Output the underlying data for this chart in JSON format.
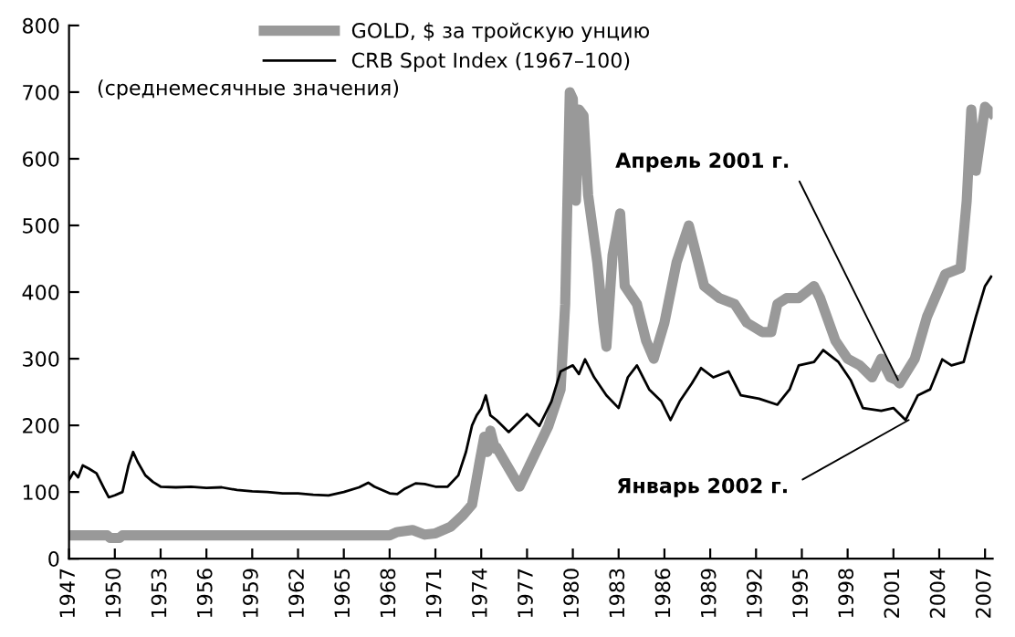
{
  "chart_data": {
    "type": "line",
    "annotations": [
      "(среднемесячные значения)",
      {
        "text": "Апрель 2001 г.",
        "x": 2001.3,
        "y": 268
      },
      {
        "text": "Январь 2002 г.",
        "x": 2002.0,
        "y": 208
      }
    ],
    "series": [
      {
        "name": "GOLD, $ за тройскую унцию",
        "color": "#999999",
        "x": [
          1947.0,
          1949.5,
          1949.7,
          1950.3,
          1950.5,
          1968.0,
          1968.5,
          1969.5,
          1970.3,
          1971.0,
          1972.0,
          1972.8,
          1973.4,
          1973.9,
          1974.2,
          1974.4,
          1974.6,
          1974.9,
          1975.0,
          1976.5,
          1978.4,
          1979.2,
          1979.5,
          1979.8,
          1980.0,
          1980.2,
          1980.4,
          1980.7,
          1981.0,
          1981.6,
          1982.0,
          1982.2,
          1982.6,
          1983.1,
          1983.4,
          1984.2,
          1984.8,
          1985.3,
          1986.0,
          1986.8,
          1987.6,
          1988.0,
          1988.6,
          1989.6,
          1990.6,
          1991.4,
          1992.4,
          1993.0,
          1993.4,
          1994.0,
          1994.8,
          1995.8,
          1996.2,
          1997.2,
          1998.0,
          1998.8,
          1999.6,
          2000.2,
          2000.8,
          2001.2,
          2001.4,
          2002.4,
          2003.2,
          2004.4,
          2005.4,
          2005.8,
          2006.1,
          2006.4,
          2007.0,
          2007.4
        ],
        "values": [
          35,
          35,
          31,
          31,
          35,
          35,
          40,
          43,
          36,
          38,
          48,
          65,
          81,
          146,
          183,
          160,
          192,
          165,
          167,
          108,
          199,
          254,
          382,
          700,
          690,
          537,
          674,
          665,
          546,
          445,
          354,
          318,
          455,
          518,
          409,
          382,
          327,
          300,
          354,
          445,
          500,
          464,
          409,
          391,
          382,
          354,
          340,
          340,
          382,
          391,
          391,
          409,
          391,
          327,
          300,
          290,
          272,
          300,
          272,
          268,
          263,
          300,
          363,
          427,
          436,
          537,
          674,
          582,
          678,
          669
        ]
      },
      {
        "name": "CRB Spot Index (1967–100)",
        "color": "#000000",
        "x": [
          1947.0,
          1947.3,
          1947.6,
          1947.9,
          1948.3,
          1948.8,
          1949.3,
          1949.6,
          1950.0,
          1950.5,
          1950.9,
          1951.2,
          1951.5,
          1952.0,
          1952.5,
          1953.0,
          1954.0,
          1955.0,
          1956.0,
          1957.0,
          1958.0,
          1959.0,
          1960.0,
          1961.0,
          1962.0,
          1963.0,
          1964.0,
          1965.0,
          1966.0,
          1966.6,
          1967.0,
          1968.0,
          1968.5,
          1969.0,
          1969.7,
          1970.3,
          1971.0,
          1971.8,
          1972.5,
          1973.0,
          1973.4,
          1973.7,
          1974.0,
          1974.3,
          1974.6,
          1975.0,
          1975.8,
          1977.0,
          1977.8,
          1978.6,
          1979.2,
          1980.0,
          1980.4,
          1980.8,
          1981.4,
          1982.2,
          1983.0,
          1983.6,
          1984.2,
          1985.0,
          1985.8,
          1986.4,
          1987.0,
          1987.8,
          1988.4,
          1989.2,
          1990.2,
          1991.0,
          1992.2,
          1993.4,
          1994.2,
          1994.8,
          1995.8,
          1996.4,
          1997.4,
          1998.2,
          1999.0,
          2000.2,
          2001.0,
          2001.8,
          2002.6,
          2003.4,
          2004.2,
          2004.8,
          2005.6,
          2006.4,
          2007.0,
          2007.4
        ],
        "values": [
          118,
          130,
          122,
          140,
          135,
          128,
          105,
          92,
          95,
          100,
          140,
          160,
          145,
          125,
          115,
          108,
          107,
          108,
          106,
          107,
          103,
          101,
          100,
          98,
          98,
          96,
          95,
          100,
          107,
          114,
          108,
          98,
          97,
          105,
          113,
          112,
          108,
          108,
          125,
          160,
          200,
          215,
          225,
          245,
          215,
          208,
          190,
          217,
          199,
          236,
          281,
          290,
          277,
          299,
          272,
          245,
          226,
          272,
          290,
          254,
          236,
          208,
          236,
          263,
          286,
          272,
          281,
          245,
          240,
          231,
          254,
          290,
          295,
          313,
          295,
          268,
          226,
          222,
          226,
          208,
          245,
          254,
          299,
          290,
          295,
          363,
          409,
          423
        ]
      }
    ],
    "xlim": [
      1947,
      2007.5
    ],
    "xticks": [
      1947,
      1950,
      1953,
      1956,
      1959,
      1962,
      1965,
      1968,
      1971,
      1974,
      1977,
      1980,
      1983,
      1986,
      1989,
      1992,
      1995,
      1998,
      2001,
      2004,
      2007
    ],
    "ylim": [
      0,
      800
    ],
    "yticks": [
      0,
      100,
      200,
      300,
      400,
      500,
      600,
      700,
      800
    ],
    "legend": "top",
    "grid": false,
    "marker": "none",
    "line_style": "solid"
  }
}
